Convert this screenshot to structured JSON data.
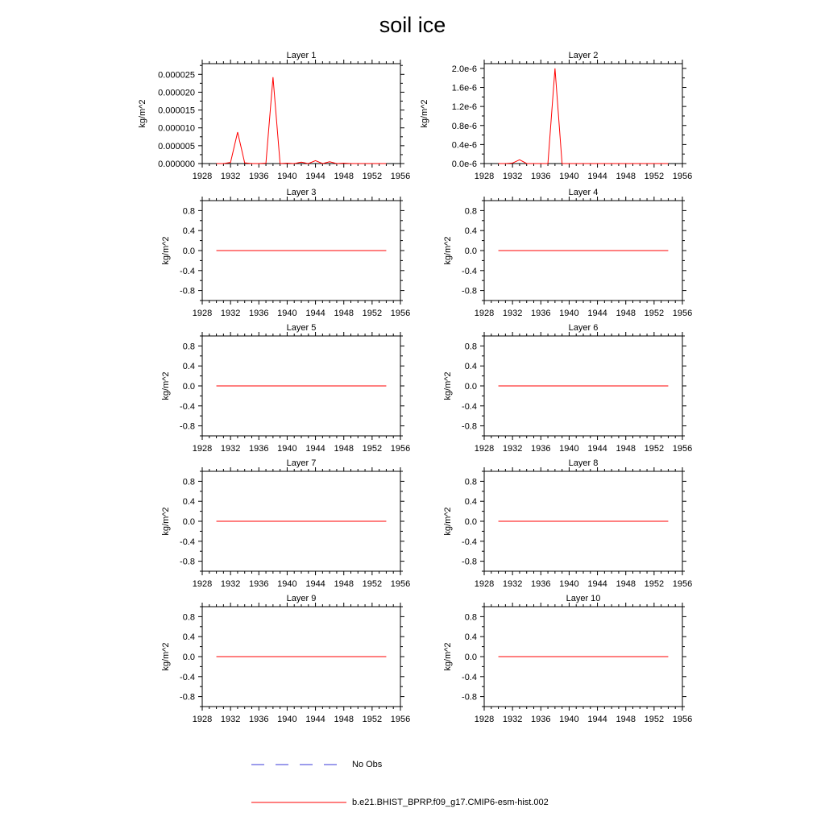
{
  "title": "soil ice",
  "chart_data": [
    {
      "type": "line",
      "title": "Layer 1",
      "ylabel": "kg/m^2",
      "xlim": [
        1928,
        1956
      ],
      "xticks": [
        "1928",
        "1932",
        "1936",
        "1940",
        "1944",
        "1948",
        "1952",
        "1956"
      ],
      "ylim": [
        0,
        2.8e-05
      ],
      "yticks": [
        0,
        5e-06,
        1e-05,
        1.5e-05,
        2e-05,
        2.5e-05
      ],
      "yticklabels": [
        "0.000000",
        "0.000005",
        "0.000010",
        "0.000015",
        "0.000020",
        "0.000025"
      ],
      "series": [
        {
          "name": "b.e21.BHIST_BPRP.f09_g17.CMIP6-esm-hist.002",
          "x": [
            1930,
            1931,
            1932,
            1933,
            1934,
            1935,
            1936,
            1937,
            1938,
            1939,
            1940,
            1941,
            1942,
            1943,
            1944,
            1945,
            1946,
            1947,
            1948,
            1949,
            1950,
            1951,
            1952,
            1953,
            1954
          ],
          "y": [
            0,
            0,
            3e-07,
            8.8e-06,
            2e-07,
            0,
            0,
            1e-07,
            2.42e-05,
            0,
            1e-07,
            0,
            4e-07,
            0,
            8e-07,
            0,
            5e-07,
            0,
            1e-07,
            0,
            0,
            0,
            0,
            0,
            0
          ]
        }
      ]
    },
    {
      "type": "line",
      "title": "Layer 2",
      "ylabel": "kg/m^2",
      "xlim": [
        1928,
        1956
      ],
      "xticks": [
        "1928",
        "1932",
        "1936",
        "1940",
        "1944",
        "1948",
        "1952",
        "1956"
      ],
      "ylim": [
        0,
        2.1e-06
      ],
      "yticks": [
        0,
        4e-07,
        8e-07,
        1.2e-06,
        1.6e-06,
        2e-06
      ],
      "yticklabels": [
        "0.0e-6",
        "0.4e-6",
        "0.8e-6",
        "1.2e-6",
        "1.6e-6",
        "2.0e-6"
      ],
      "series": [
        {
          "name": "b.e21.BHIST_BPRP.f09_g17.CMIP6-esm-hist.002",
          "x": [
            1930,
            1931,
            1932,
            1933,
            1934,
            1935,
            1936,
            1937,
            1938,
            1939,
            1940,
            1941,
            1942,
            1943,
            1944,
            1945,
            1946,
            1947,
            1948,
            1949,
            1950,
            1951,
            1952,
            1953,
            1954
          ],
          "y": [
            0,
            0,
            1e-08,
            8e-08,
            0,
            0,
            0,
            0,
            2e-06,
            0,
            0,
            0,
            0,
            0,
            0,
            0,
            0,
            0,
            0,
            0,
            0,
            0,
            0,
            0,
            0
          ]
        }
      ]
    },
    {
      "type": "line",
      "title": "Layer 3",
      "ylabel": "kg/m^2",
      "xlim": [
        1928,
        1956
      ],
      "xticks": [
        "1928",
        "1932",
        "1936",
        "1940",
        "1944",
        "1948",
        "1952",
        "1956"
      ],
      "ylim": [
        -1,
        1
      ],
      "yticks": [
        -0.8,
        -0.4,
        0,
        0.4,
        0.8
      ],
      "yticklabels": [
        "-0.8",
        "-0.4",
        "0.0",
        "0.4",
        "0.8"
      ],
      "series": [
        {
          "name": "b.e21.BHIST_BPRP.f09_g17.CMIP6-esm-hist.002",
          "x": [
            1930,
            1954
          ],
          "y": [
            0,
            0
          ]
        }
      ]
    },
    {
      "type": "line",
      "title": "Layer 4",
      "ylabel": "kg/m^2",
      "xlim": [
        1928,
        1956
      ],
      "xticks": [
        "1928",
        "1932",
        "1936",
        "1940",
        "1944",
        "1948",
        "1952",
        "1956"
      ],
      "ylim": [
        -1,
        1
      ],
      "yticks": [
        -0.8,
        -0.4,
        0,
        0.4,
        0.8
      ],
      "yticklabels": [
        "-0.8",
        "-0.4",
        "0.0",
        "0.4",
        "0.8"
      ],
      "series": [
        {
          "name": "b.e21.BHIST_BPRP.f09_g17.CMIP6-esm-hist.002",
          "x": [
            1930,
            1954
          ],
          "y": [
            0,
            0
          ]
        }
      ]
    },
    {
      "type": "line",
      "title": "Layer 5",
      "ylabel": "kg/m^2",
      "xlim": [
        1928,
        1956
      ],
      "xticks": [
        "1928",
        "1932",
        "1936",
        "1940",
        "1944",
        "1948",
        "1952",
        "1956"
      ],
      "ylim": [
        -1,
        1
      ],
      "yticks": [
        -0.8,
        -0.4,
        0,
        0.4,
        0.8
      ],
      "yticklabels": [
        "-0.8",
        "-0.4",
        "0.0",
        "0.4",
        "0.8"
      ],
      "series": [
        {
          "name": "b.e21.BHIST_BPRP.f09_g17.CMIP6-esm-hist.002",
          "x": [
            1930,
            1954
          ],
          "y": [
            0,
            0
          ]
        }
      ]
    },
    {
      "type": "line",
      "title": "Layer 6",
      "ylabel": "kg/m^2",
      "xlim": [
        1928,
        1956
      ],
      "xticks": [
        "1928",
        "1932",
        "1936",
        "1940",
        "1944",
        "1948",
        "1952",
        "1956"
      ],
      "ylim": [
        -1,
        1
      ],
      "yticks": [
        -0.8,
        -0.4,
        0,
        0.4,
        0.8
      ],
      "yticklabels": [
        "-0.8",
        "-0.4",
        "0.0",
        "0.4",
        "0.8"
      ],
      "series": [
        {
          "name": "b.e21.BHIST_BPRP.f09_g17.CMIP6-esm-hist.002",
          "x": [
            1930,
            1954
          ],
          "y": [
            0,
            0
          ]
        }
      ]
    },
    {
      "type": "line",
      "title": "Layer 7",
      "ylabel": "kg/m^2",
      "xlim": [
        1928,
        1956
      ],
      "xticks": [
        "1928",
        "1932",
        "1936",
        "1940",
        "1944",
        "1948",
        "1952",
        "1956"
      ],
      "ylim": [
        -1,
        1
      ],
      "yticks": [
        -0.8,
        -0.4,
        0,
        0.4,
        0.8
      ],
      "yticklabels": [
        "-0.8",
        "-0.4",
        "0.0",
        "0.4",
        "0.8"
      ],
      "series": [
        {
          "name": "b.e21.BHIST_BPRP.f09_g17.CMIP6-esm-hist.002",
          "x": [
            1930,
            1954
          ],
          "y": [
            0,
            0
          ]
        }
      ]
    },
    {
      "type": "line",
      "title": "Layer 8",
      "ylabel": "kg/m^2",
      "xlim": [
        1928,
        1956
      ],
      "xticks": [
        "1928",
        "1932",
        "1936",
        "1940",
        "1944",
        "1948",
        "1952",
        "1956"
      ],
      "ylim": [
        -1,
        1
      ],
      "yticks": [
        -0.8,
        -0.4,
        0,
        0.4,
        0.8
      ],
      "yticklabels": [
        "-0.8",
        "-0.4",
        "0.0",
        "0.4",
        "0.8"
      ],
      "series": [
        {
          "name": "b.e21.BHIST_BPRP.f09_g17.CMIP6-esm-hist.002",
          "x": [
            1930,
            1954
          ],
          "y": [
            0,
            0
          ]
        }
      ]
    },
    {
      "type": "line",
      "title": "Layer 9",
      "ylabel": "kg/m^2",
      "xlim": [
        1928,
        1956
      ],
      "xticks": [
        "1928",
        "1932",
        "1936",
        "1940",
        "1944",
        "1948",
        "1952",
        "1956"
      ],
      "ylim": [
        -1,
        1
      ],
      "yticks": [
        -0.8,
        -0.4,
        0,
        0.4,
        0.8
      ],
      "yticklabels": [
        "-0.8",
        "-0.4",
        "0.0",
        "0.4",
        "0.8"
      ],
      "series": [
        {
          "name": "b.e21.BHIST_BPRP.f09_g17.CMIP6-esm-hist.002",
          "x": [
            1930,
            1954
          ],
          "y": [
            0,
            0
          ]
        }
      ]
    },
    {
      "type": "line",
      "title": "Layer 10",
      "ylabel": "kg/m^2",
      "xlim": [
        1928,
        1956
      ],
      "xticks": [
        "1928",
        "1932",
        "1936",
        "1940",
        "1944",
        "1948",
        "1952",
        "1956"
      ],
      "ylim": [
        -1,
        1
      ],
      "yticks": [
        -0.8,
        -0.4,
        0,
        0.4,
        0.8
      ],
      "yticklabels": [
        "-0.8",
        "-0.4",
        "0.0",
        "0.4",
        "0.8"
      ],
      "series": [
        {
          "name": "b.e21.BHIST_BPRP.f09_g17.CMIP6-esm-hist.002",
          "x": [
            1930,
            1954
          ],
          "y": [
            0,
            0
          ]
        }
      ]
    }
  ],
  "legend": {
    "entries": [
      {
        "label": "No Obs",
        "color": "#3a3ad8",
        "style": "dashed"
      },
      {
        "label": "b.e21.BHIST_BPRP.f09_g17.CMIP6-esm-hist.002",
        "color": "#ff0000",
        "style": "solid"
      }
    ]
  }
}
